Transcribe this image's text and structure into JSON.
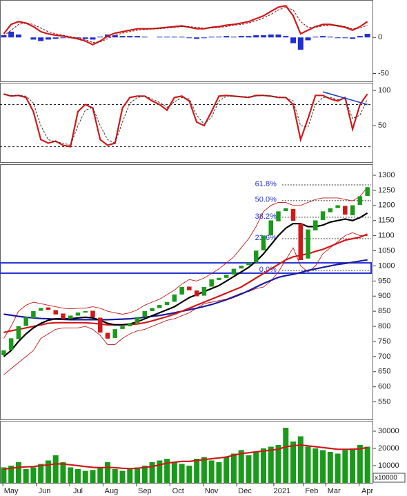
{
  "chart_data": [
    {
      "type": "macd",
      "xlim": [
        -0.5,
        49.5
      ],
      "ylim": [
        -61,
        50
      ],
      "yticks": [
        -50,
        0
      ],
      "series": [
        {
          "color": "#1f2fd0",
          "style": "bar",
          "values": [
            3,
            8,
            4,
            0,
            -3,
            -5,
            -3,
            -2,
            -1,
            -1,
            -1,
            -2,
            -3,
            1,
            4,
            3,
            2,
            2,
            2,
            1,
            0,
            1,
            1,
            1,
            1,
            -1,
            -2,
            -1,
            1,
            1,
            2,
            1,
            2,
            2,
            3,
            3,
            4,
            4,
            2,
            -8,
            -17,
            -4,
            1,
            2,
            1,
            -1,
            -1,
            -2,
            2,
            5
          ]
        },
        {
          "color": "#d01818",
          "style": "thick",
          "values": [
            5,
            18,
            22,
            20,
            15,
            8,
            5,
            3,
            2,
            0,
            -2,
            -5,
            -10,
            -5,
            2,
            6,
            8,
            10,
            12,
            12,
            12,
            13,
            14,
            15,
            16,
            14,
            12,
            12,
            14,
            15,
            17,
            18,
            20,
            22,
            26,
            30,
            36,
            42,
            44,
            30,
            5,
            10,
            15,
            18,
            18,
            16,
            14,
            10,
            15,
            22
          ]
        },
        {
          "color": "#801010",
          "style": "dashed",
          "values": [
            2,
            10,
            18,
            20,
            18,
            13,
            8,
            5,
            3,
            1,
            -1,
            -3,
            -7,
            -6,
            -2,
            3,
            6,
            8,
            10,
            11,
            12,
            12,
            13,
            14,
            15,
            15,
            14,
            13,
            13,
            14,
            15,
            17,
            18,
            20,
            23,
            27,
            32,
            38,
            42,
            38,
            22,
            14,
            14,
            16,
            17,
            17,
            15,
            12,
            13,
            17
          ]
        }
      ]
    },
    {
      "type": "stochastic",
      "xlim": [
        -0.5,
        49.5
      ],
      "ylim": [
        -2,
        109
      ],
      "yticks": [
        50,
        100
      ],
      "reference_lines": [
        80,
        20
      ],
      "series": [
        {
          "color": "#d01818",
          "style": "thick",
          "values": [
            95,
            92,
            93,
            90,
            70,
            30,
            25,
            28,
            22,
            20,
            70,
            80,
            75,
            30,
            22,
            25,
            75,
            90,
            92,
            92,
            85,
            80,
            72,
            90,
            92,
            85,
            55,
            50,
            70,
            92,
            93,
            92,
            91,
            90,
            93,
            93,
            92,
            90,
            90,
            80,
            30,
            60,
            93,
            93,
            88,
            85,
            90,
            45,
            80,
            95
          ]
        },
        {
          "color": "#333333",
          "style": "dashed",
          "values": [
            94,
            93,
            93,
            92,
            82,
            50,
            30,
            27,
            25,
            22,
            50,
            72,
            76,
            50,
            30,
            25,
            55,
            82,
            90,
            92,
            88,
            83,
            76,
            84,
            90,
            88,
            65,
            52,
            62,
            85,
            92,
            92,
            91,
            91,
            92,
            93,
            92,
            91,
            90,
            85,
            50,
            48,
            80,
            90,
            90,
            87,
            88,
            60,
            65,
            88
          ]
        }
      ],
      "trendline": {
        "color": "#2040c0",
        "x": [
          43,
          49
        ],
        "values": [
          98,
          80
        ]
      }
    },
    {
      "type": "candlestick",
      "xlim": [
        -0.5,
        49.5
      ],
      "ylim": [
        492,
        1332
      ],
      "yticks": [
        550,
        600,
        650,
        700,
        750,
        800,
        850,
        900,
        950,
        1000,
        1050,
        1100,
        1150,
        1200,
        1250,
        1300
      ],
      "up_color": "#1a9a1a",
      "down_color": "#d01818",
      "open": [
        705,
        722,
        758,
        802,
        828,
        852,
        862,
        853,
        842,
        826,
        836,
        846,
        851,
        828,
        778,
        762,
        792,
        801,
        812,
        831,
        851,
        861,
        871,
        882,
        906,
        931,
        918,
        902,
        932,
        954,
        961,
        972,
        992,
        1003,
        1012,
        1052,
        1102,
        1148,
        1182,
        1188,
        1140,
        1025,
        1118,
        1152,
        1178,
        1192,
        1198,
        1168,
        1202,
        1232
      ],
      "close": [
        720,
        760,
        800,
        830,
        850,
        860,
        855,
        840,
        825,
        835,
        845,
        850,
        830,
        780,
        760,
        790,
        800,
        810,
        830,
        850,
        860,
        870,
        880,
        905,
        930,
        920,
        900,
        930,
        955,
        960,
        970,
        990,
        1000,
        1010,
        1050,
        1100,
        1150,
        1180,
        1190,
        1150,
        1020,
        1120,
        1150,
        1180,
        1190,
        1200,
        1170,
        1200,
        1230,
        1260
      ],
      "series": [
        {
          "color": "#c01818",
          "style": "thin",
          "values": [
            760,
            800,
            850,
            870,
            880,
            875,
            870,
            865,
            860,
            858,
            860,
            860,
            865,
            860,
            850,
            845,
            840,
            845,
            855,
            870,
            880,
            890,
            905,
            920,
            940,
            955,
            950,
            960,
            975,
            990,
            1010,
            1030,
            1060,
            1090,
            1130,
            1180,
            1200,
            1210,
            1210,
            1200,
            1200,
            1210,
            1220,
            1225,
            1225,
            1225,
            1220,
            1215,
            1230,
            1260
          ]
        },
        {
          "color": "#c01818",
          "style": "thin",
          "values": [
            640,
            660,
            680,
            700,
            720,
            760,
            775,
            790,
            795,
            795,
            795,
            800,
            790,
            770,
            740,
            740,
            760,
            775,
            785,
            790,
            800,
            810,
            820,
            825,
            835,
            845,
            860,
            875,
            880,
            885,
            890,
            900,
            910,
            915,
            925,
            930,
            950,
            980,
            1020,
            1060,
            1000,
            980,
            1000,
            1040,
            1060,
            1080,
            1100,
            1110,
            1100,
            1100
          ]
        },
        {
          "color": "#1a1aa0",
          "style": "thick",
          "values": [
            840,
            837,
            833,
            830,
            828,
            826,
            825,
            824,
            823,
            822,
            822,
            822,
            822,
            822,
            822,
            823,
            824,
            825,
            827,
            830,
            833,
            836,
            840,
            845,
            850,
            855,
            860,
            866,
            872,
            880,
            888,
            897,
            907,
            918,
            930,
            942,
            952,
            962,
            968,
            972,
            978,
            985,
            990,
            995,
            1000,
            1005,
            1008,
            1012,
            1016,
            1020
          ]
        },
        {
          "color": "#d01818",
          "style": "thick",
          "values": [
            780,
            785,
            790,
            795,
            800,
            805,
            810,
            812,
            812,
            812,
            812,
            812,
            810,
            808,
            805,
            805,
            805,
            806,
            808,
            812,
            818,
            825,
            832,
            840,
            850,
            860,
            870,
            880,
            890,
            900,
            910,
            920,
            930,
            945,
            960,
            975,
            990,
            1005,
            1020,
            1030,
            1035,
            1040,
            1048,
            1055,
            1065,
            1075,
            1085,
            1090,
            1095,
            1105
          ]
        },
        {
          "color": "#000000",
          "style": "thick",
          "values": [
            700,
            720,
            750,
            775,
            795,
            810,
            820,
            825,
            825,
            825,
            828,
            830,
            828,
            820,
            810,
            805,
            805,
            808,
            815,
            825,
            835,
            845,
            855,
            865,
            880,
            895,
            905,
            915,
            925,
            935,
            950,
            965,
            980,
            995,
            1015,
            1040,
            1070,
            1100,
            1125,
            1140,
            1140,
            1130,
            1130,
            1135,
            1145,
            1150,
            1155,
            1150,
            1160,
            1175
          ]
        }
      ],
      "fib_color": "#2030d0",
      "fib_levels": [
        {
          "label": "61.8%",
          "value": 1268
        },
        {
          "label": "50.0%",
          "value": 1216
        },
        {
          "label": "38.2%",
          "value": 1161
        },
        {
          "label": "23.6%",
          "value": 1090
        },
        {
          "label": "0.0%",
          "value": 985
        }
      ],
      "zone": [
        976,
        1010
      ]
    },
    {
      "type": "bar",
      "xlim": [
        -0.5,
        49.5
      ],
      "ylim": [
        0,
        35200
      ],
      "yticks": [
        10000,
        20000,
        30000
      ],
      "unit_label": "x10000",
      "color": "#1a9a1a",
      "values": [
        9000,
        10000,
        12000,
        8000,
        9000,
        11000,
        13000,
        16000,
        12000,
        9000,
        8000,
        7000,
        7500,
        9000,
        12000,
        8000,
        7000,
        8000,
        9000,
        10000,
        12000,
        13000,
        14000,
        12000,
        11000,
        10000,
        14000,
        15000,
        13000,
        12000,
        15000,
        17000,
        19000,
        16000,
        18000,
        20000,
        21000,
        22000,
        32000,
        24000,
        27000,
        21000,
        20000,
        19000,
        18000,
        17000,
        19000,
        20000,
        22000,
        21000
      ],
      "series": [
        {
          "color": "#d01818",
          "style": "thick",
          "values": [
            8000,
            8500,
            9000,
            9300,
            9500,
            10000,
            10500,
            11000,
            11000,
            10500,
            10000,
            9500,
            9000,
            8800,
            9000,
            8800,
            8500,
            8300,
            8500,
            9000,
            9500,
            10500,
            11500,
            12000,
            12500,
            12500,
            13000,
            13500,
            14000,
            14500,
            15000,
            16000,
            17000,
            17500,
            18000,
            18500,
            19000,
            19500,
            21000,
            21500,
            22000,
            21500,
            21000,
            20500,
            20000,
            19500,
            19500,
            19500,
            19800,
            20500
          ]
        }
      ],
      "xticks": [
        {
          "value": 1,
          "label": "May"
        },
        {
          "value": 5.5,
          "label": "Jun"
        },
        {
          "value": 10,
          "label": "Jul"
        },
        {
          "value": 14.5,
          "label": "Aug"
        },
        {
          "value": 19,
          "label": "Sep"
        },
        {
          "value": 23.5,
          "label": "Oct"
        },
        {
          "value": 28,
          "label": "Nov"
        },
        {
          "value": 32.5,
          "label": "Dec"
        },
        {
          "value": 37.5,
          "label": "2021"
        },
        {
          "value": 41.5,
          "label": "Feb"
        },
        {
          "value": 44.5,
          "label": "Mar"
        },
        {
          "value": 49,
          "label": "Apr"
        }
      ]
    }
  ]
}
